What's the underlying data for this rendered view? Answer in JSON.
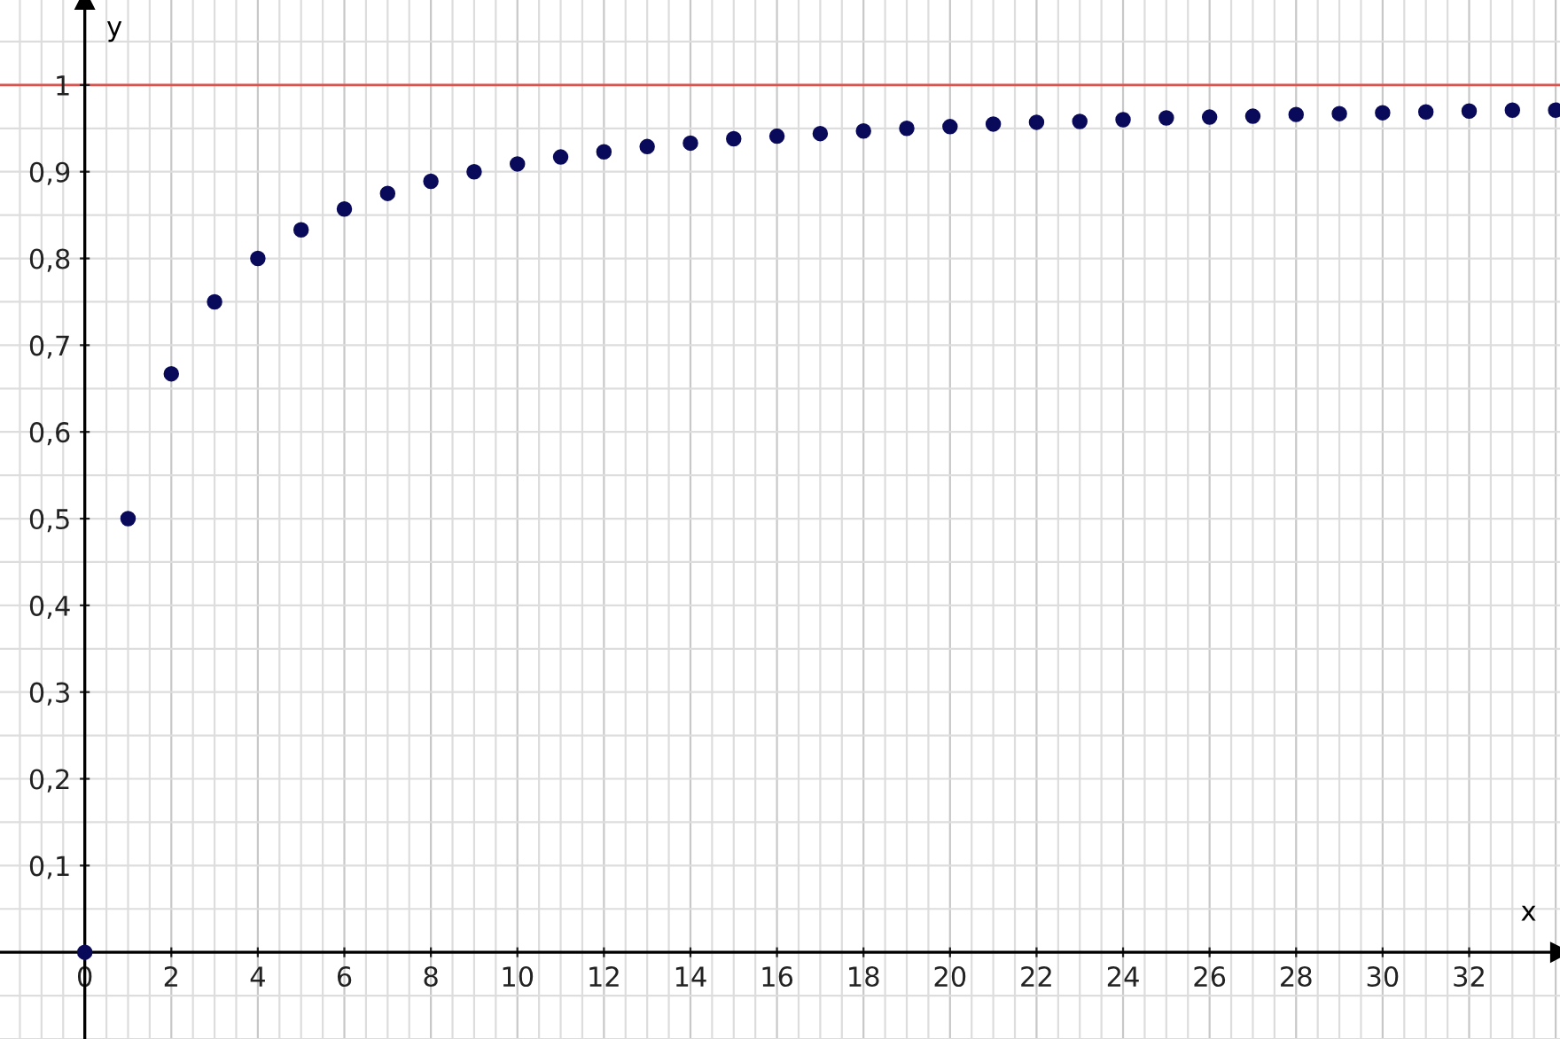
{
  "chart_data": {
    "type": "scatter",
    "xlabel": "x",
    "ylabel": "y",
    "x": [
      0,
      1,
      2,
      3,
      4,
      5,
      6,
      7,
      8,
      9,
      10,
      11,
      12,
      13,
      14,
      15,
      16,
      17,
      18,
      19,
      20,
      21,
      22,
      23,
      24,
      25,
      26,
      27,
      28,
      29,
      30,
      31,
      32,
      33,
      34
    ],
    "series": [
      {
        "color": "#0a0a5a",
        "values": [
          0,
          0.5,
          0.667,
          0.75,
          0.8,
          0.833,
          0.857,
          0.875,
          0.889,
          0.9,
          0.909,
          0.917,
          0.923,
          0.929,
          0.933,
          0.938,
          0.941,
          0.944,
          0.947,
          0.95,
          0.952,
          0.955,
          0.957,
          0.958,
          0.96,
          0.962,
          0.963,
          0.964,
          0.966,
          0.967,
          0.968,
          0.969,
          0.97,
          0.971,
          0.971
        ]
      }
    ],
    "marker": "circle",
    "grid": true,
    "xlim": [
      -1.96,
      34.1
    ],
    "ylim": [
      -0.1,
      1.098
    ],
    "xticks": [
      0,
      2,
      4,
      6,
      8,
      10,
      12,
      14,
      16,
      18,
      20,
      22,
      24,
      26,
      28,
      30,
      32
    ],
    "yticks": [
      {
        "value": 0.1,
        "label": "0,1"
      },
      {
        "value": 0.2,
        "label": "0,2"
      },
      {
        "value": 0.3,
        "label": "0,3"
      },
      {
        "value": 0.4,
        "label": "0,4"
      },
      {
        "value": 0.5,
        "label": "0,5"
      },
      {
        "value": 0.6,
        "label": "0,6"
      },
      {
        "value": 0.7,
        "label": "0,7"
      },
      {
        "value": 0.8,
        "label": "0,8"
      },
      {
        "value": 0.9,
        "label": "0,9"
      },
      {
        "value": 1,
        "label": "1"
      }
    ],
    "ref_lines": [
      {
        "axis": "y",
        "value": 1,
        "color": "#d9534f"
      }
    ]
  }
}
